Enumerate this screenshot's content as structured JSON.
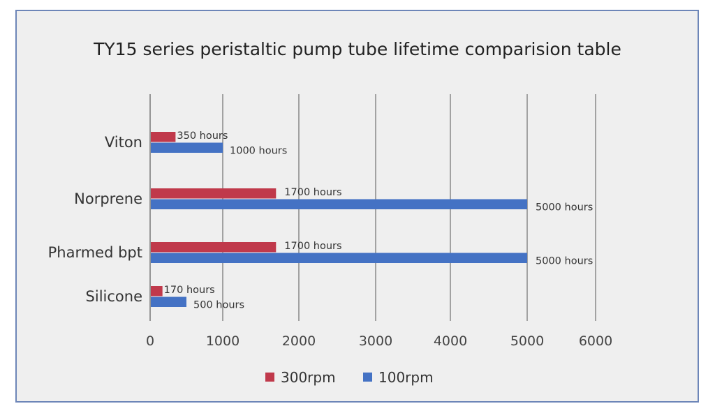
{
  "chart_data": {
    "type": "bar",
    "orientation": "horizontal",
    "title": "TY15 series peristaltic pump tube lifetime comparision table",
    "categories": [
      "Viton",
      "Norprene",
      "Pharmed bpt",
      "Silicone"
    ],
    "series": [
      {
        "name": "300rpm",
        "color": "#c0394b",
        "values": [
          350,
          1700,
          1700,
          170
        ],
        "labels": [
          "350  hours",
          "1700 hours",
          "1700 hours",
          "170 hours"
        ]
      },
      {
        "name": "100rpm",
        "color": "#4472c4",
        "values": [
          1000,
          5000,
          5000,
          500
        ],
        "labels": [
          "1000 hours",
          "5000 hours",
          "5000 hours",
          "500   hours"
        ]
      }
    ],
    "xlim": [
      0,
      6000
    ],
    "xticks": [
      "0",
      "1000",
      "2000",
      "3000",
      "4000",
      "5000",
      "6000"
    ],
    "grid": true,
    "legend": "bottom"
  }
}
